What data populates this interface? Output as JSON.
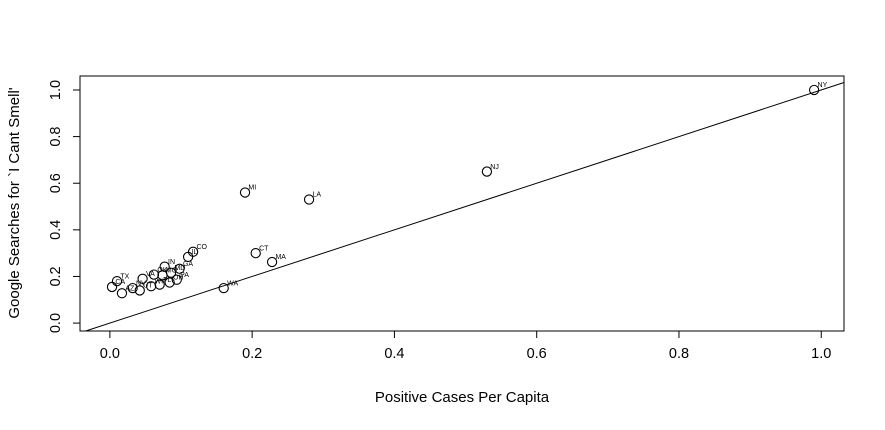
{
  "figure": {
    "background": "#ffffff",
    "foreground": "#000000"
  },
  "chart_data": {
    "type": "scatter",
    "title": "",
    "xlabel": "Positive Cases Per Capita",
    "ylabel": "Google Searches for `I Cant Smell'",
    "xlim": [
      -0.042,
      1.032
    ],
    "ylim": [
      -0.034,
      1.06
    ],
    "xticks": {
      "values": [
        0.0,
        0.2,
        0.4,
        0.6,
        0.8,
        1.0
      ],
      "labels": [
        "0.0",
        "0.2",
        "0.4",
        "0.6",
        "0.8",
        "1.0"
      ]
    },
    "yticks": {
      "values": [
        0.0,
        0.2,
        0.4,
        0.6,
        0.8,
        1.0
      ],
      "labels": [
        "0.0",
        "0.2",
        "0.4",
        "0.6",
        "0.8",
        "1.0"
      ]
    },
    "grid": false,
    "legend": null,
    "marker": "open-circle",
    "marker_color": "#000000",
    "reference_line": {
      "type": "abline",
      "intercept": 0,
      "slope": 1
    },
    "points": [
      {
        "label": "NY",
        "x": 0.99,
        "y": 1.0
      },
      {
        "label": "NJ",
        "x": 0.53,
        "y": 0.65
      },
      {
        "label": "MI",
        "x": 0.19,
        "y": 0.56
      },
      {
        "label": "LA",
        "x": 0.28,
        "y": 0.53
      },
      {
        "label": "CO",
        "x": 0.117,
        "y": 0.306
      },
      {
        "label": "CT",
        "x": 0.205,
        "y": 0.3
      },
      {
        "label": "IL",
        "x": 0.11,
        "y": 0.284
      },
      {
        "label": "MA",
        "x": 0.228,
        "y": 0.262
      },
      {
        "label": "IN",
        "x": 0.077,
        "y": 0.242
      },
      {
        "label": "GA",
        "x": 0.098,
        "y": 0.233
      },
      {
        "label": "MD",
        "x": 0.086,
        "y": 0.216
      },
      {
        "label": "OK",
        "x": 0.062,
        "y": 0.208
      },
      {
        "label": "MO",
        "x": 0.074,
        "y": 0.205
      },
      {
        "label": "VA",
        "x": 0.046,
        "y": 0.19
      },
      {
        "label": "PA",
        "x": 0.094,
        "y": 0.186
      },
      {
        "label": "TX",
        "x": 0.01,
        "y": 0.18
      },
      {
        "label": "OH",
        "x": 0.084,
        "y": 0.174
      },
      {
        "label": "FL",
        "x": 0.07,
        "y": 0.165
      },
      {
        "label": "WI",
        "x": 0.058,
        "y": 0.158
      },
      {
        "label": "CA",
        "x": 0.003,
        "y": 0.155
      },
      {
        "label": "NV",
        "x": 0.032,
        "y": 0.15
      },
      {
        "label": "WA",
        "x": 0.16,
        "y": 0.15
      },
      {
        "label": "UT",
        "x": 0.042,
        "y": 0.14
      },
      {
        "label": "AZ",
        "x": 0.017,
        "y": 0.128
      }
    ]
  }
}
